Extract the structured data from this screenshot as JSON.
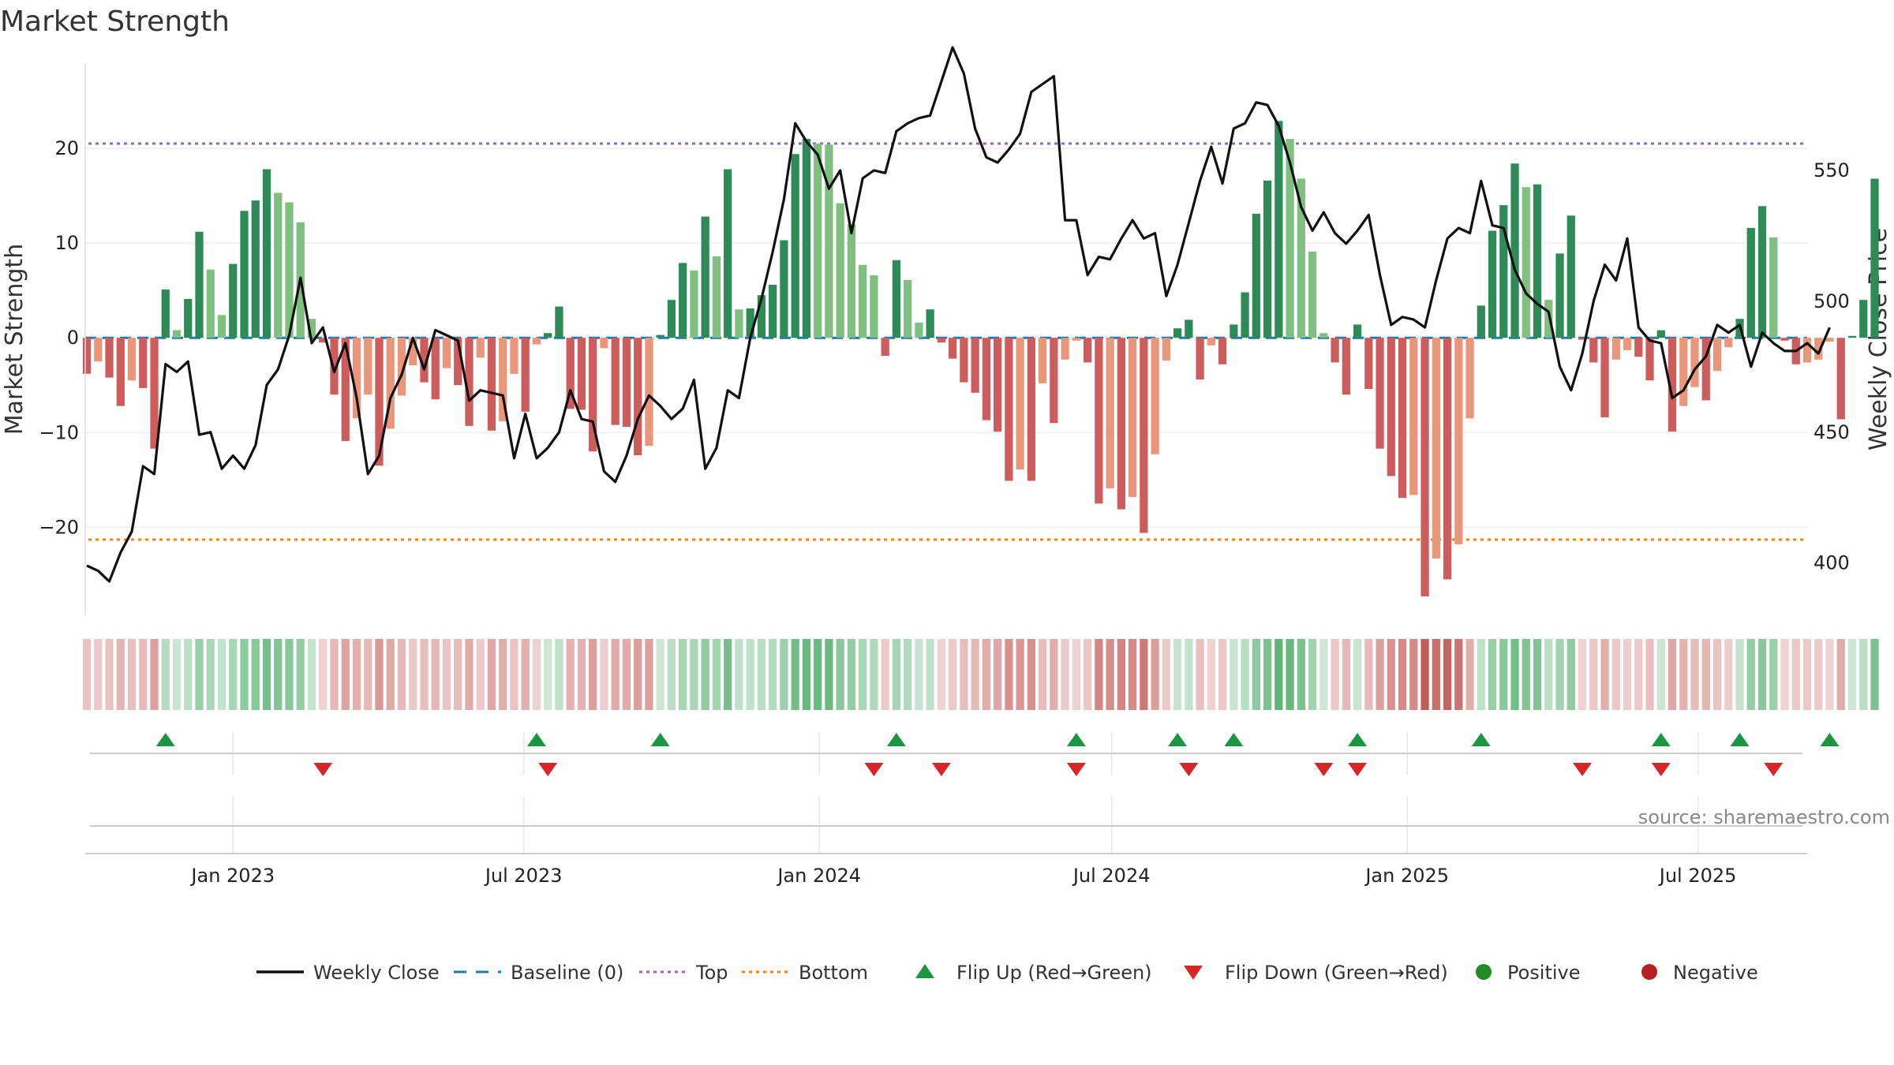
{
  "title": "Market Strength",
  "source": "source: sharemaestro.com",
  "colors": {
    "strong_green": "#2e8b57",
    "light_green": "#7fbf7f",
    "strong_red": "#cd5c5c",
    "light_red": "#e9967a",
    "line": "#111111",
    "baseline": "#1f77b4",
    "top": "#9467bd",
    "bottom": "#ff7f0e",
    "flip_up": "#1a9641",
    "flip_down": "#d62728",
    "positive": "#228b22",
    "negative": "#b22222"
  },
  "chart_data": {
    "type": "bar+line",
    "title": "Market Strength",
    "ylabel_left": "Market Strength",
    "ylabel_right": "Weekly Close Price",
    "ylim_left": [
      -29.3,
      29
    ],
    "ylim_right": [
      380,
      591
    ],
    "yticks_left": [
      20,
      10,
      0,
      -10,
      -20
    ],
    "yticks_left_labels": [
      "20",
      "10",
      "0",
      "−10",
      "−20"
    ],
    "yticks_right": [
      550,
      500,
      450,
      400
    ],
    "xlim": [
      "2022-10-01",
      "2025-09-07"
    ],
    "xticks": [
      "2023-01-01",
      "2023-07-01",
      "2024-01-01",
      "2024-07-01",
      "2025-01-01",
      "2025-07-01"
    ],
    "xtick_labels": [
      "Jan 2023",
      "Jul 2023",
      "Jan 2024",
      "Jul 2024",
      "Jan 2025",
      "Jul 2025"
    ],
    "top_line": 20.5,
    "bottom_line": -21.3,
    "baseline": 0,
    "week_start": "2022-10-02",
    "strength": [
      -3.8,
      -2.5,
      -4.2,
      -7.2,
      -4.5,
      -5.3,
      -11.7,
      5.1,
      0.8,
      4.1,
      11.2,
      7.2,
      2.4,
      7.8,
      13.4,
      14.5,
      17.8,
      15.3,
      14.3,
      12.2,
      2.0,
      -0.5,
      -6.0,
      -10.9,
      -8.5,
      -6.0,
      -13.5,
      -9.6,
      -6.1,
      -2.9,
      -4.7,
      -6.5,
      -3.2,
      -5.0,
      -9.3,
      -2.1,
      -9.8,
      -8.8,
      -3.8,
      -7.8,
      -0.7,
      0.5,
      3.3,
      -7.5,
      -7.6,
      -12.0,
      -1.1,
      -9.2,
      -9.4,
      -12.4,
      -11.4,
      0.3,
      4.0,
      7.9,
      7.1,
      12.8,
      8.6,
      17.8,
      3.0,
      3.1,
      4.5,
      5.6,
      10.3,
      19.4,
      21.0,
      20.5,
      20.4,
      14.2,
      12.0,
      7.7,
      6.6,
      -1.9,
      8.2,
      6.1,
      1.6,
      3.0,
      -0.5,
      -2.2,
      -4.7,
      -5.8,
      -8.7,
      -9.9,
      -15.1,
      -13.9,
      -15.1,
      -4.8,
      -9.0,
      -2.3,
      -0.3,
      -2.6,
      -17.5,
      -15.9,
      -18.1,
      -16.8,
      -20.6,
      -12.3,
      -2.4,
      1.0,
      1.9,
      -4.4,
      -0.8,
      -2.8,
      1.4,
      4.8,
      13.1,
      16.6,
      22.9,
      21.0,
      16.8,
      9.1,
      0.5,
      -2.6,
      -6.0,
      1.4,
      -5.4,
      -11.7,
      -14.6,
      -16.9,
      -16.6,
      -27.3,
      -23.3,
      -25.5,
      -21.8,
      -8.5,
      3.4,
      11.3,
      14.0,
      18.4,
      15.9,
      16.2,
      4.0,
      8.9,
      12.9,
      -0.2,
      -2.6,
      -8.4,
      -2.3,
      -1.3,
      -2.0,
      -4.5,
      0.8,
      -9.9,
      -7.2,
      -5.2,
      -6.6,
      -3.5,
      -1.0,
      2.0,
      11.6,
      13.9,
      10.6,
      -0.3,
      -2.8,
      -2.6,
      -2.3,
      -0.4,
      -8.6,
      0.2,
      4.0,
      16.8
    ],
    "close": [
      399,
      397,
      393,
      404,
      412,
      437,
      434,
      476,
      473,
      477,
      449,
      450,
      436,
      441,
      436,
      445,
      468,
      474,
      487,
      509,
      484,
      490,
      473,
      484,
      463,
      434,
      441,
      463,
      472,
      486,
      474,
      489,
      487,
      485,
      462,
      466,
      465,
      464,
      440,
      457,
      440,
      444,
      450,
      466,
      455,
      454,
      435,
      431,
      441,
      455,
      464,
      460,
      455,
      459,
      470,
      436,
      444,
      466,
      463,
      486,
      501,
      519,
      539,
      568,
      561,
      556,
      543,
      550,
      526,
      547,
      550,
      549,
      565,
      568,
      570,
      571,
      584,
      597,
      587,
      566,
      555,
      553,
      558,
      564,
      580,
      583,
      586,
      531,
      531,
      510,
      517,
      516,
      524,
      531,
      524,
      526,
      502,
      514,
      530,
      546,
      559,
      545,
      566,
      568,
      576,
      575,
      567,
      553,
      536,
      527,
      534,
      526,
      522,
      527,
      533,
      510,
      491,
      494,
      493,
      490,
      508,
      524,
      528,
      526,
      546,
      529,
      528,
      512,
      503,
      499,
      496,
      475,
      466,
      480,
      500,
      514,
      508,
      524,
      490,
      485,
      484,
      463,
      466,
      474,
      479,
      491,
      488,
      491,
      475,
      488,
      484,
      481,
      481,
      484,
      480,
      490
    ],
    "flip_up_weeks": [
      7,
      40,
      51,
      72,
      88,
      97,
      102,
      113,
      124,
      140,
      147,
      155
    ],
    "flip_down_weeks": [
      21,
      41,
      70,
      76,
      88,
      98,
      110,
      113,
      133,
      140,
      150
    ]
  },
  "legend": [
    {
      "label": "Weekly Close",
      "kind": "line"
    },
    {
      "label": "Baseline (0)",
      "kind": "dash"
    },
    {
      "label": "Top",
      "kind": "dot-purple"
    },
    {
      "label": "Bottom",
      "kind": "dot-orange"
    },
    {
      "label": "Flip Up (Red→Green)",
      "kind": "tri-up"
    },
    {
      "label": "Flip Down (Green→Red)",
      "kind": "tri-down"
    },
    {
      "label": "Positive",
      "kind": "dot-pos"
    },
    {
      "label": "Negative",
      "kind": "dot-neg"
    }
  ]
}
